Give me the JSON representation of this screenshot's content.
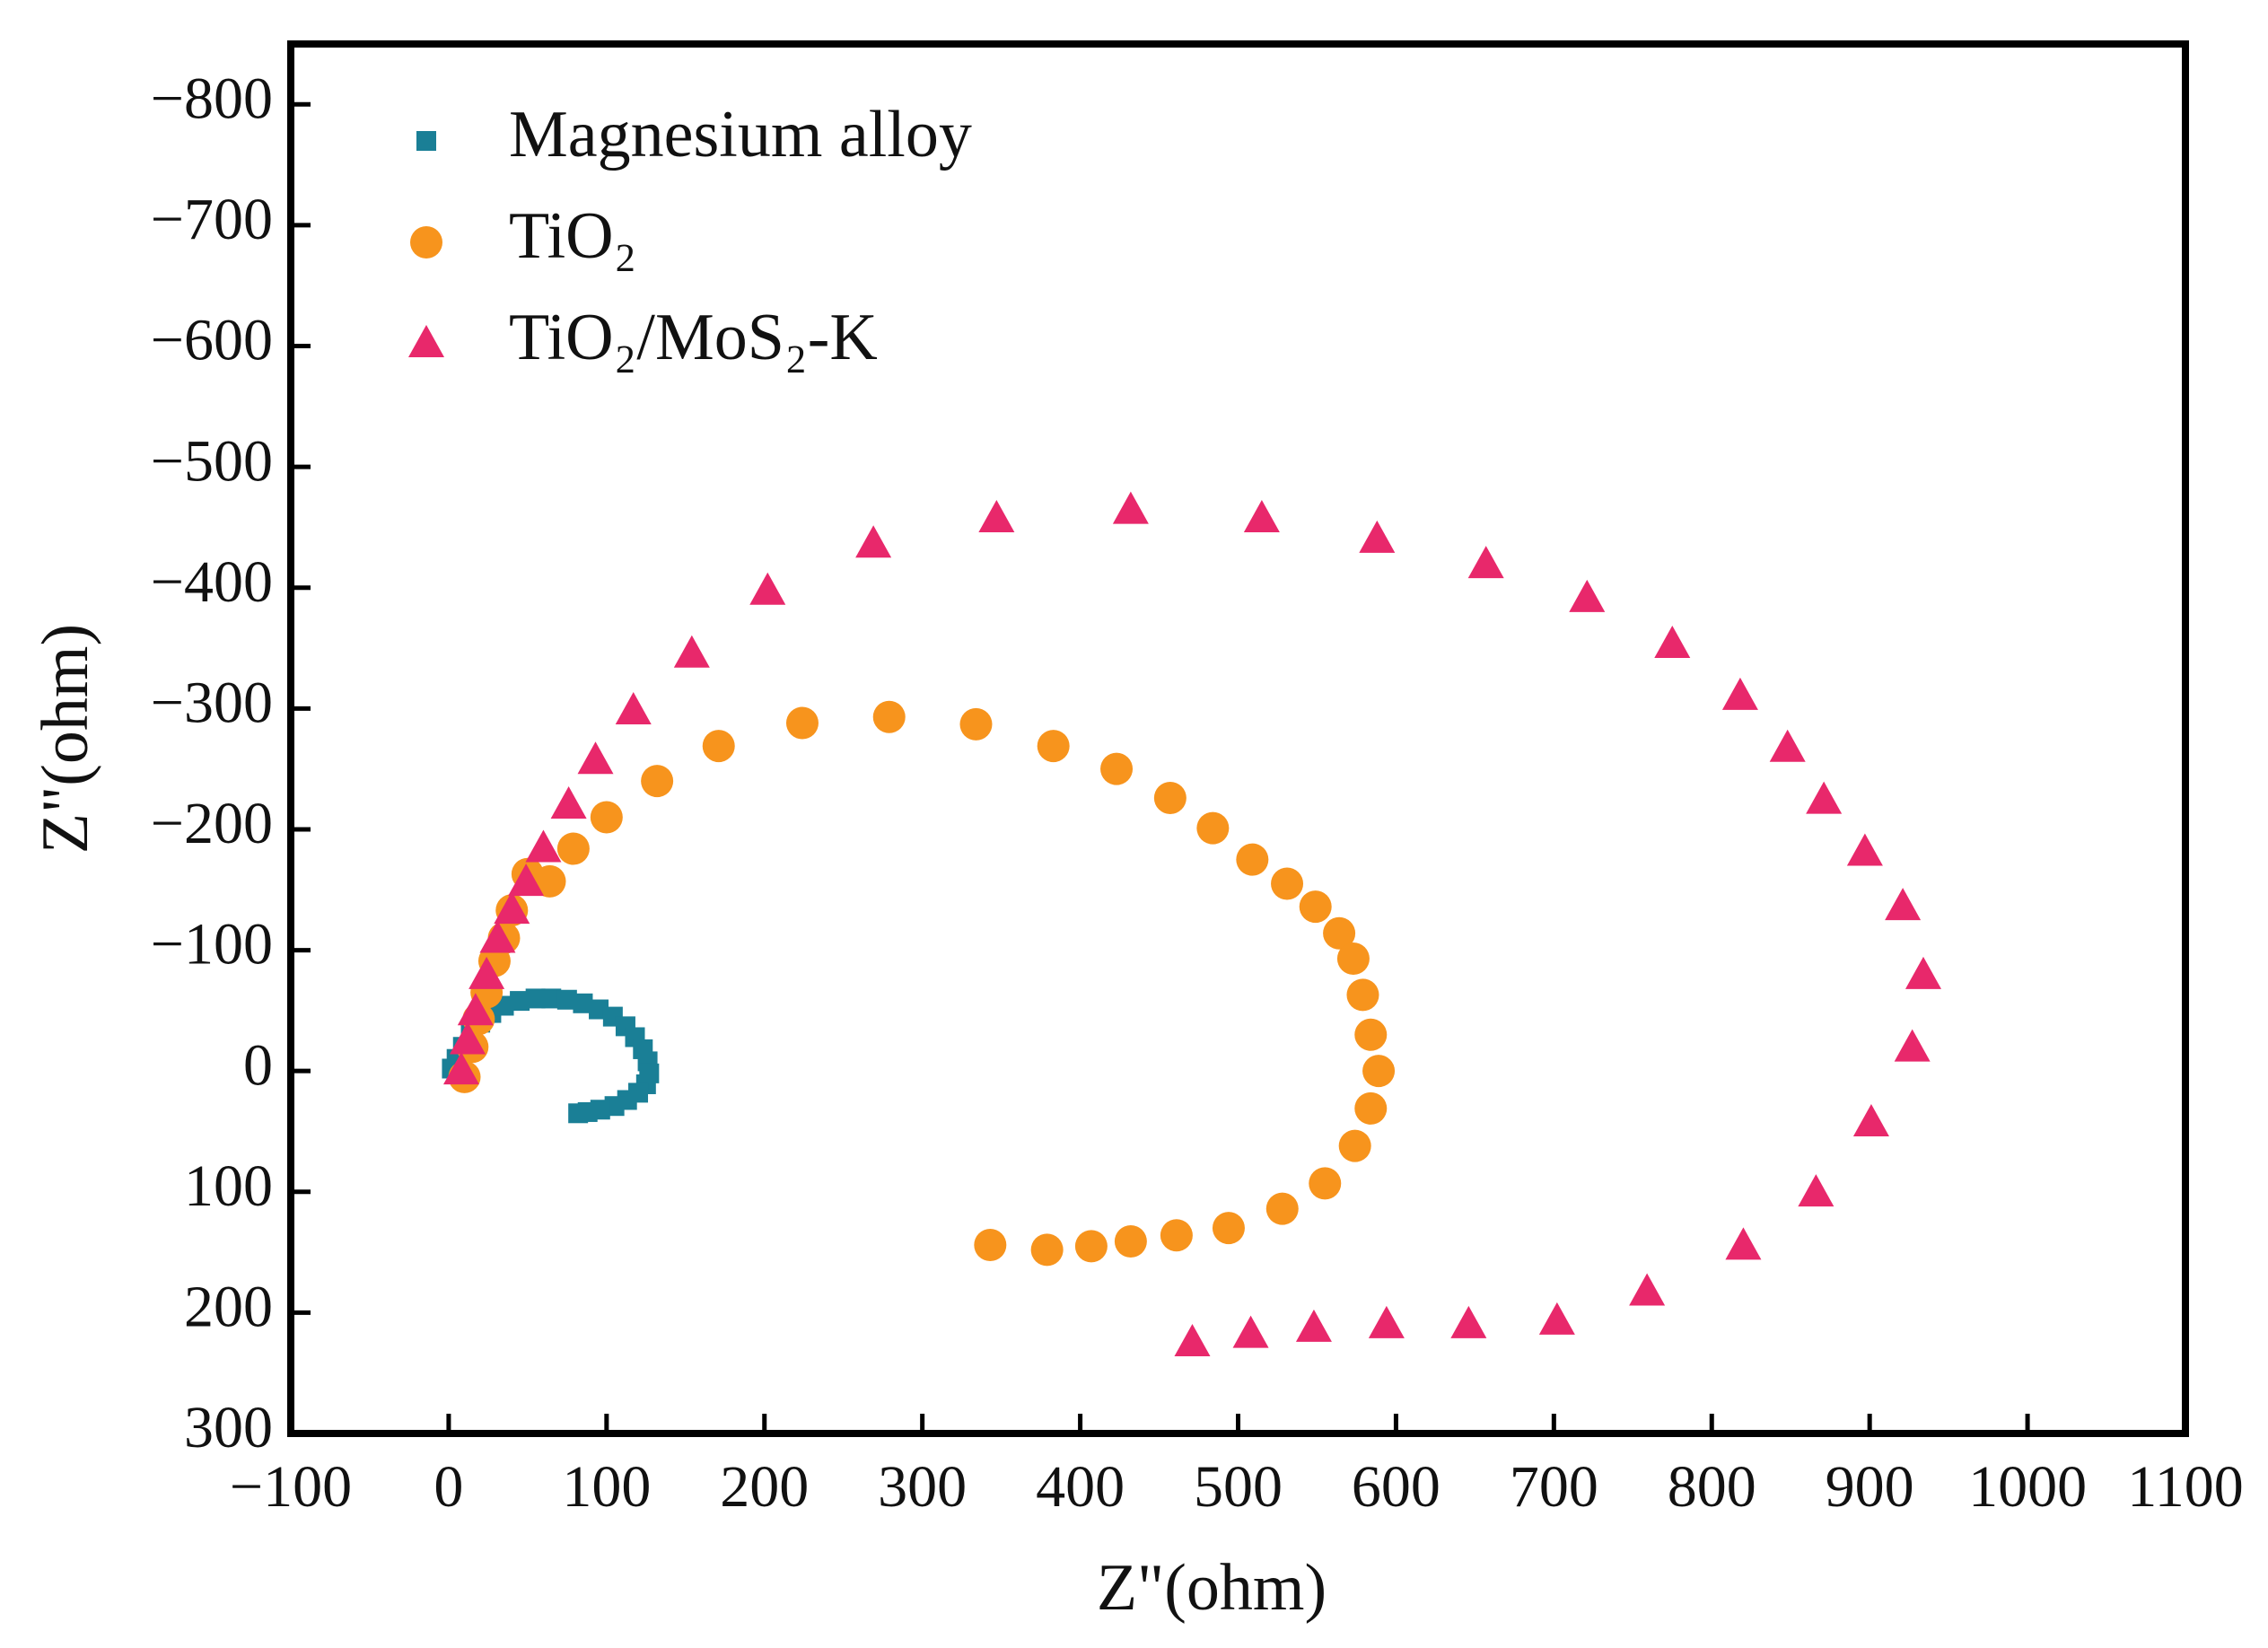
{
  "chart_data": {
    "type": "scatter",
    "xlabel": "Z\"(ohm)",
    "ylabel": "Z\"(ohm)",
    "xlim": [
      -100,
      1100
    ],
    "ylim": [
      300,
      -850
    ],
    "xticks": [
      {
        "value": -100,
        "label": "−100"
      },
      0,
      100,
      200,
      300,
      400,
      500,
      600,
      700,
      800,
      900,
      1000,
      1100
    ],
    "yticks": [
      300,
      200,
      100,
      0,
      {
        "value": -100,
        "label": "−100"
      },
      {
        "value": -200,
        "label": "−200"
      },
      {
        "value": -300,
        "label": "−300"
      },
      {
        "value": -400,
        "label": "−400"
      },
      {
        "value": -500,
        "label": "−500"
      },
      {
        "value": -600,
        "label": "−600"
      },
      {
        "value": -700,
        "label": "−700"
      },
      {
        "value": -800,
        "label": "−800"
      }
    ],
    "legend": "upper left",
    "series": [
      {
        "name": "Magnesium alloy",
        "color": "#1a7f96",
        "marker": "square",
        "x": [
          2,
          5,
          9,
          14,
          20,
          27,
          35,
          45,
          55,
          65,
          75,
          85,
          95,
          104,
          112,
          118,
          123,
          126,
          127,
          125,
          120,
          113,
          105,
          96,
          88,
          82
        ],
        "y": [
          -2,
          -10,
          -20,
          -30,
          -40,
          -48,
          -54,
          -58,
          -60,
          -60,
          -59,
          -56,
          -51,
          -45,
          -37,
          -28,
          -18,
          -8,
          2,
          11,
          18,
          24,
          29,
          32,
          34,
          35
        ]
      },
      {
        "name": "TiO₂",
        "color": "#f7941d",
        "marker": "circle",
        "x": [
          10,
          15,
          19,
          24,
          29,
          35,
          40,
          50,
          64,
          79,
          100,
          132,
          171,
          224,
          279,
          334,
          383,
          423,
          457,
          484,
          509,
          531,
          549,
          564,
          573,
          579,
          584,
          589,
          584,
          574,
          555,
          528,
          494,
          461,
          432,
          407,
          379,
          343
        ],
        "y": [
          5,
          -20,
          -43,
          -65,
          -91,
          -110,
          -133,
          -163,
          -157,
          -184,
          -210,
          -240,
          -269,
          -288,
          -293,
          -287,
          -269,
          -250,
          -226,
          -201,
          -175,
          -155,
          -136,
          -114,
          -93,
          -63,
          -30,
          0,
          31,
          62,
          93,
          114,
          130,
          136,
          141,
          145,
          148,
          144
        ]
      },
      {
        "name": "TiO₂/MoS₂-K",
        "color": "#e8286b",
        "marker": "triangle",
        "x": [
          8,
          12,
          17,
          24,
          31,
          40,
          49,
          60,
          76,
          93,
          117,
          154,
          202,
          269,
          347,
          432,
          515,
          588,
          657,
          721,
          775,
          818,
          848,
          871,
          897,
          921,
          934,
          927,
          901,
          866,
          820,
          759,
          702,
          646,
          594,
          548,
          508,
          471
        ],
        "y": [
          0,
          -25,
          -49,
          -79,
          -109,
          -133,
          -156,
          -184,
          -220,
          -257,
          -298,
          -345,
          -397,
          -436,
          -457,
          -464,
          -457,
          -440,
          -419,
          -391,
          -353,
          -310,
          -267,
          -224,
          -181,
          -136,
          -79,
          -19,
          43,
          101,
          145,
          183,
          207,
          210,
          210,
          213,
          218,
          225
        ]
      }
    ]
  }
}
